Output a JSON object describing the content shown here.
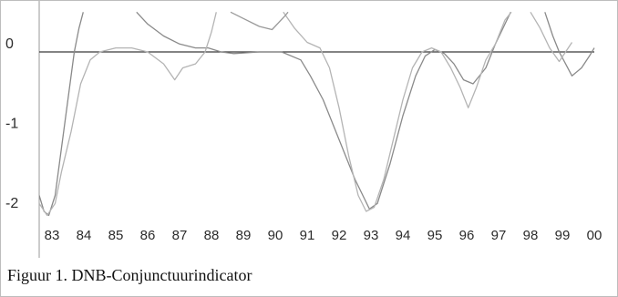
{
  "caption": "Figuur 1. DNB-Conjunctuurindicator",
  "chart_data": {
    "type": "line",
    "title": "",
    "xlabel": "",
    "ylabel": "",
    "xlim": [
      1982.6,
      2000.0
    ],
    "ylim": [
      -2.4,
      0.5
    ],
    "yticks": [
      0,
      -1,
      -2
    ],
    "ytick_labels": [
      "0",
      "-1",
      "-2"
    ],
    "xtick_values": [
      1983,
      1984,
      1985,
      1986,
      1987,
      1988,
      1989,
      1990,
      1991,
      1992,
      1993,
      1994,
      1995,
      1996,
      1997,
      1998,
      1999,
      2000
    ],
    "xtick_labels": [
      "83",
      "84",
      "85",
      "86",
      "87",
      "88",
      "89",
      "90",
      "91",
      "92",
      "93",
      "94",
      "95",
      "96",
      "97",
      "98",
      "99",
      "00"
    ],
    "zero_line": true,
    "grid": false,
    "legend": "none",
    "series": [
      {
        "color": "#8a8a8a",
        "points": [
          [
            1982.6,
            -1.8
          ],
          [
            1982.75,
            -2.0
          ],
          [
            1982.9,
            -2.05
          ],
          [
            1983.1,
            -1.8
          ],
          [
            1983.3,
            -1.2
          ],
          [
            1983.5,
            -0.6
          ],
          [
            1983.7,
            0.0
          ],
          [
            1983.85,
            0.3
          ],
          [
            1983.98,
            0.5
          ],
          null,
          [
            1985.65,
            0.5
          ],
          [
            1986.0,
            0.35
          ],
          [
            1986.5,
            0.2
          ],
          [
            1987.0,
            0.1
          ],
          [
            1987.5,
            0.05
          ],
          [
            1987.9,
            0.05
          ],
          [
            1988.3,
            0.0
          ],
          [
            1988.7,
            -0.02
          ],
          [
            1989.5,
            0.0
          ],
          [
            1990.2,
            0.0
          ],
          [
            1990.8,
            -0.1
          ],
          [
            1991.1,
            -0.3
          ],
          [
            1991.5,
            -0.6
          ],
          [
            1992.0,
            -1.1
          ],
          [
            1992.5,
            -1.6
          ],
          [
            1992.95,
            -1.97
          ],
          [
            1993.2,
            -1.9
          ],
          [
            1993.6,
            -1.4
          ],
          [
            1994.0,
            -0.8
          ],
          [
            1994.4,
            -0.3
          ],
          [
            1994.7,
            -0.05
          ],
          [
            1995.0,
            0.03
          ],
          [
            1995.3,
            -0.02
          ],
          [
            1995.6,
            -0.15
          ],
          [
            1995.9,
            -0.35
          ],
          [
            1996.2,
            -0.4
          ],
          [
            1996.6,
            -0.2
          ],
          [
            1996.9,
            0.1
          ],
          [
            1997.2,
            0.35
          ],
          [
            1997.38,
            0.5
          ],
          null,
          [
            1998.45,
            0.5
          ],
          [
            1998.7,
            0.2
          ],
          [
            1998.9,
            0.0
          ],
          [
            1999.1,
            -0.15
          ],
          [
            1999.3,
            -0.3
          ],
          [
            1999.6,
            -0.2
          ],
          [
            1999.85,
            -0.05
          ],
          [
            2000.0,
            0.05
          ]
        ]
      },
      {
        "color": "#b4b4b4",
        "points": [
          [
            1982.6,
            -1.9
          ],
          [
            1982.85,
            -2.05
          ],
          [
            1983.1,
            -1.9
          ],
          [
            1983.3,
            -1.5
          ],
          [
            1983.6,
            -1.0
          ],
          [
            1983.9,
            -0.4
          ],
          [
            1984.2,
            -0.1
          ],
          [
            1984.5,
            0.0
          ],
          [
            1985.0,
            0.05
          ],
          [
            1985.5,
            0.05
          ],
          [
            1986.0,
            0.0
          ],
          [
            1986.5,
            -0.15
          ],
          [
            1986.85,
            -0.35
          ],
          [
            1987.1,
            -0.2
          ],
          [
            1987.5,
            -0.15
          ],
          [
            1987.8,
            0.0
          ],
          [
            1988.0,
            0.25
          ],
          [
            1988.15,
            0.5
          ],
          null,
          [
            1990.25,
            0.5
          ],
          [
            1990.6,
            0.3
          ],
          [
            1991.0,
            0.12
          ],
          [
            1991.4,
            0.05
          ],
          [
            1991.7,
            -0.2
          ],
          [
            1992.0,
            -0.7
          ],
          [
            1992.3,
            -1.3
          ],
          [
            1992.6,
            -1.8
          ],
          [
            1992.85,
            -2.0
          ],
          [
            1993.1,
            -1.95
          ],
          [
            1993.4,
            -1.6
          ],
          [
            1993.7,
            -1.1
          ],
          [
            1994.0,
            -0.6
          ],
          [
            1994.3,
            -0.2
          ],
          [
            1994.6,
            0.0
          ],
          [
            1994.9,
            0.05
          ],
          [
            1995.2,
            0.0
          ],
          [
            1995.5,
            -0.2
          ],
          [
            1995.8,
            -0.45
          ],
          [
            1996.05,
            -0.7
          ],
          [
            1996.3,
            -0.45
          ],
          [
            1996.6,
            -0.1
          ],
          [
            1996.9,
            0.1
          ],
          [
            1997.2,
            0.4
          ],
          [
            1997.4,
            0.5
          ],
          null,
          [
            1998.0,
            0.5
          ],
          [
            1998.3,
            0.3
          ],
          [
            1998.6,
            0.05
          ],
          [
            1998.9,
            -0.12
          ],
          [
            1999.1,
            0.0
          ],
          [
            1999.3,
            0.12
          ]
        ]
      },
      {
        "color": "#999999",
        "points": [
          [
            1988.6,
            0.5
          ],
          [
            1989.0,
            0.42
          ],
          [
            1989.5,
            0.32
          ],
          [
            1989.9,
            0.28
          ],
          [
            1990.3,
            0.45
          ],
          [
            1990.4,
            0.5
          ]
        ]
      }
    ]
  }
}
